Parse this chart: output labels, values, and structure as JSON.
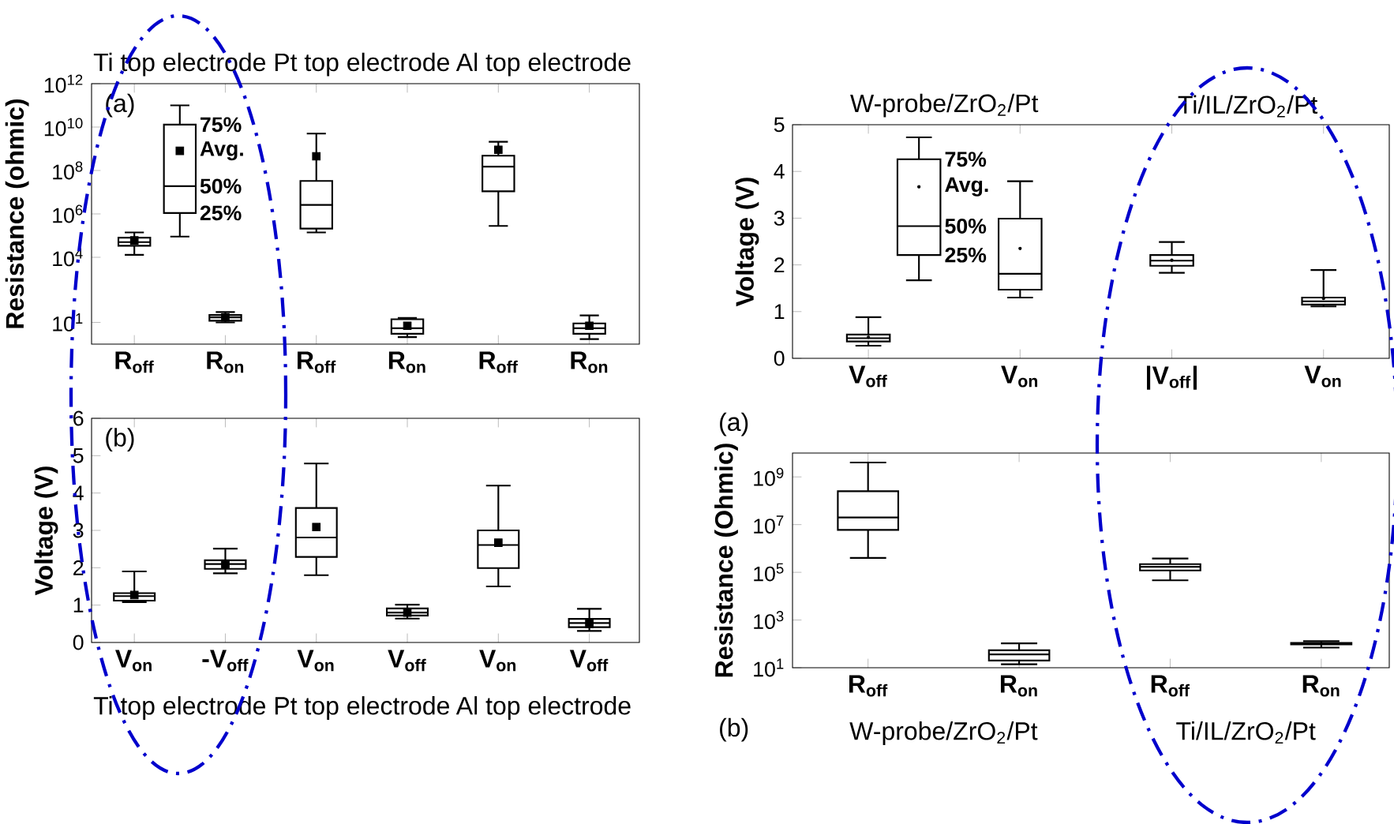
{
  "chart_data": [
    {
      "type": "box",
      "categories": [
        "R$_{off}$",
        null,
        "R$_{on}$",
        null,
        "R$_{off}$",
        null,
        "R$_{on}$",
        null,
        "R$_{off}$",
        null,
        "R$_{on}$"
      ],
      "ylabel": "Resistance (ohmic)",
      "log": true,
      "ylim": [
        1,
        1000000000000.0
      ],
      "yticks": [
        {
          "value": 1000000000000.0,
          "label": "10$^{12}$"
        },
        {
          "value": 10000000000.0,
          "label": "10$^{10}$"
        },
        {
          "value": 100000000.0,
          "label": "10$^{8}$"
        },
        {
          "value": 1000000.0,
          "label": "10$^{6}$"
        },
        {
          "value": 10000.0,
          "label": "10$^{4}$"
        },
        {
          "value": 10,
          "label": "10$^{1}$"
        }
      ],
      "boxes": [
        {
          "low": 13000,
          "q1": 34000,
          "median": 50000,
          "q3": 80000,
          "high": 140000,
          "mean": 60000
        },
        {
          "low": 90000,
          "q1": 1100000,
          "median": 19000000,
          "q3": 13000000000,
          "high": 100000000000,
          "mean": 800000000
        },
        {
          "low": 10,
          "q1": 12,
          "median": 17,
          "q3": 22,
          "high": 30,
          "mean": 17
        },
        null,
        {
          "low": 140000,
          "q1": 210000,
          "median": 2600000,
          "q3": 33000000,
          "high": 5000000000,
          "mean": 450000000
        },
        null,
        {
          "low": 2.1,
          "q1": 3,
          "median": 5.4,
          "q3": 14,
          "high": 16,
          "mean": 7
        },
        null,
        {
          "low": 280000,
          "q1": 11000000,
          "median": 150000000,
          "q3": 480000000,
          "high": 2100000000,
          "mean": 900000000
        },
        null,
        {
          "low": 1.7,
          "q1": 3,
          "median": 5.4,
          "q3": 9,
          "high": 21,
          "mean": 7
        }
      ],
      "annotations": [
        "Ti top electrode",
        "Pt top electrode",
        "Al top electrode",
        "(a)",
        "75%",
        "Avg.",
        "50%",
        "25%"
      ]
    },
    {
      "type": "box",
      "categories": [
        "V$_{on}$",
        "-V$_{off}$",
        "V$_{on}$",
        "V$_{off}$",
        "V$_{on}$",
        "V$_{off}$"
      ],
      "ylabel": "Voltage (V)",
      "ylim": [
        0,
        6
      ],
      "yticks": [
        0,
        1,
        2,
        3,
        4,
        5,
        6
      ],
      "boxes": [
        {
          "low": 1.08,
          "q1": 1.12,
          "median": 1.24,
          "q3": 1.32,
          "high": 1.9,
          "mean": 1.27
        },
        {
          "low": 1.85,
          "q1": 1.97,
          "median": 2.1,
          "q3": 2.2,
          "high": 2.51,
          "mean": 2.1
        },
        {
          "low": 1.8,
          "q1": 2.29,
          "median": 2.81,
          "q3": 3.6,
          "high": 4.79,
          "mean": 3.09
        },
        {
          "low": 0.64,
          "q1": 0.72,
          "median": 0.8,
          "q3": 0.91,
          "high": 1.01,
          "mean": 0.8
        },
        {
          "low": 1.5,
          "q1": 1.99,
          "median": 2.61,
          "q3": 3.0,
          "high": 4.2,
          "mean": 2.67
        },
        {
          "low": 0.31,
          "q1": 0.41,
          "median": 0.52,
          "q3": 0.63,
          "high": 0.9,
          "mean": 0.5
        }
      ],
      "annotations": [
        "Ti top electrode",
        "Pt top electrode",
        "Al top electrode",
        "(b)"
      ]
    },
    {
      "type": "box",
      "categories": [
        "V$_{off}$",
        null,
        null,
        "V$_{on}$",
        null,
        null,
        "|V$_{off}$|",
        null,
        null,
        "V$_{on}$"
      ],
      "ylabel": "Voltage (V)",
      "ylim": [
        0,
        5
      ],
      "yticks": [
        0,
        1,
        2,
        3,
        4,
        5
      ],
      "boxes": [
        {
          "low": 0.27,
          "q1": 0.36,
          "median": 0.43,
          "q3": 0.51,
          "high": 0.88,
          "mean": 0.45
        },
        {
          "low": 1.67,
          "q1": 2.21,
          "median": 2.83,
          "q3": 4.26,
          "high": 4.73,
          "mean": 3.67
        },
        null,
        {
          "low": 1.3,
          "q1": 1.47,
          "median": 1.81,
          "q3": 2.99,
          "high": 3.79,
          "mean": 2.35
        },
        null,
        null,
        {
          "low": 1.83,
          "q1": 1.98,
          "median": 2.09,
          "q3": 2.21,
          "high": 2.49,
          "mean": 2.1
        },
        null,
        null,
        {
          "low": 1.11,
          "q1": 1.15,
          "median": 1.22,
          "q3": 1.3,
          "high": 1.89,
          "mean": 1.28
        }
      ],
      "annotations": [
        "W-probe/ZrO$_{2}$/Pt",
        "Ti/IL/ZrO$_{2}$/Pt",
        "(a)",
        "75%",
        "Avg.",
        "50%",
        "25%"
      ]
    },
    {
      "type": "box",
      "categories": [
        "R$_{off}$",
        "R$_{on}$",
        "R$_{off}$",
        "R$_{on}$"
      ],
      "ylabel": "Resistance (Ohmic)",
      "log": true,
      "ylim": [
        10,
        10000000000.0
      ],
      "yticks": [
        {
          "value": 10,
          "label": "10$^{1}$"
        },
        {
          "value": 1000,
          "label": "10$^{3}$"
        },
        {
          "value": 100000,
          "label": "10$^{5}$"
        },
        {
          "value": 10000000,
          "label": "10$^{7}$"
        },
        {
          "value": 1000000000,
          "label": "10$^{9}$"
        }
      ],
      "boxes": [
        {
          "low": 400000,
          "q1": 6000000,
          "median": 20000000,
          "q3": 250000000,
          "high": 4000000000
        },
        {
          "low": 14,
          "q1": 20,
          "median": 36,
          "q3": 54,
          "high": 105
        },
        {
          "low": 46000,
          "q1": 120000,
          "median": 170000,
          "q3": 220000,
          "high": 380000
        },
        {
          "low": 70,
          "q1": 95,
          "median": 105,
          "q3": 110,
          "high": 130
        }
      ],
      "annotations": [
        "W-probe/ZrO$_{2}$/Pt",
        "Ti/IL/ZrO$_{2}$/Pt",
        "(b)"
      ]
    }
  ]
}
